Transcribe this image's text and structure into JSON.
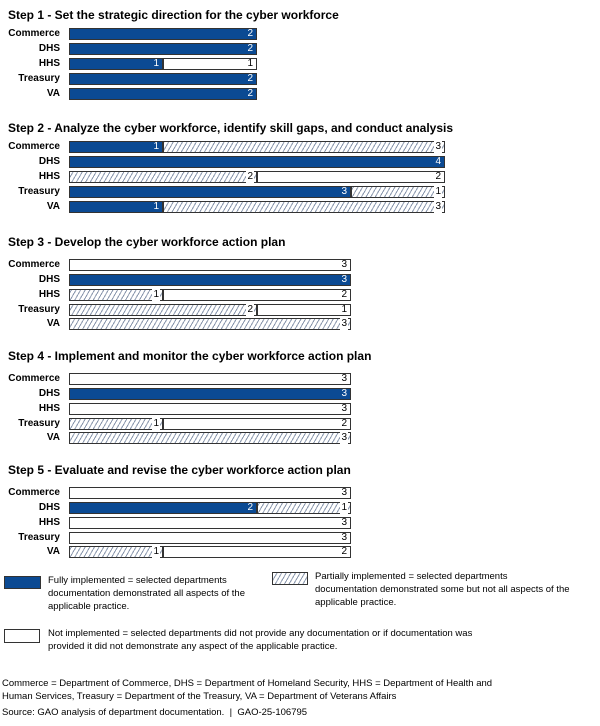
{
  "chart_data": {
    "type": "bar",
    "orientation": "horizontal",
    "stacked": true,
    "colors": {
      "full": "#0b4a93",
      "partial": "hatched",
      "not": "#ffffff"
    },
    "steps": [
      {
        "title": "Step 1 - Set the strategic direction for the cyber workforce",
        "rows": [
          {
            "dept": "Commerce",
            "full": 2,
            "partial": 0,
            "not": 0
          },
          {
            "dept": "DHS",
            "full": 2,
            "partial": 0,
            "not": 0
          },
          {
            "dept": "HHS",
            "full": 1,
            "partial": 0,
            "not": 1
          },
          {
            "dept": "Treasury",
            "full": 2,
            "partial": 0,
            "not": 0
          },
          {
            "dept": "VA",
            "full": 2,
            "partial": 0,
            "not": 0
          }
        ]
      },
      {
        "title": "Step 2 - Analyze the cyber workforce, identify skill gaps, and conduct analysis",
        "rows": [
          {
            "dept": "Commerce",
            "full": 1,
            "partial": 3,
            "not": 0
          },
          {
            "dept": "DHS",
            "full": 4,
            "partial": 0,
            "not": 0
          },
          {
            "dept": "HHS",
            "full": 0,
            "partial": 2,
            "not": 2
          },
          {
            "dept": "Treasury",
            "full": 3,
            "partial": 1,
            "not": 0
          },
          {
            "dept": "VA",
            "full": 1,
            "partial": 3,
            "not": 0
          }
        ]
      },
      {
        "title": "Step 3 - Develop the cyber workforce action plan",
        "rows": [
          {
            "dept": "Commerce",
            "full": 0,
            "partial": 0,
            "not": 3
          },
          {
            "dept": "DHS",
            "full": 3,
            "partial": 0,
            "not": 0
          },
          {
            "dept": "HHS",
            "full": 0,
            "partial": 1,
            "not": 2
          },
          {
            "dept": "Treasury",
            "full": 0,
            "partial": 2,
            "not": 1
          },
          {
            "dept": "VA",
            "full": 0,
            "partial": 3,
            "not": 0
          }
        ]
      },
      {
        "title": "Step 4 - Implement and monitor the cyber workforce action plan",
        "rows": [
          {
            "dept": "Commerce",
            "full": 0,
            "partial": 0,
            "not": 3
          },
          {
            "dept": "DHS",
            "full": 3,
            "partial": 0,
            "not": 0
          },
          {
            "dept": "HHS",
            "full": 0,
            "partial": 0,
            "not": 3
          },
          {
            "dept": "Treasury",
            "full": 0,
            "partial": 1,
            "not": 2
          },
          {
            "dept": "VA",
            "full": 0,
            "partial": 3,
            "not": 0
          }
        ]
      },
      {
        "title": "Step 5 - Evaluate and revise the cyber workforce action plan",
        "rows": [
          {
            "dept": "Commerce",
            "full": 0,
            "partial": 0,
            "not": 3
          },
          {
            "dept": "DHS",
            "full": 2,
            "partial": 1,
            "not": 0
          },
          {
            "dept": "HHS",
            "full": 0,
            "partial": 0,
            "not": 3
          },
          {
            "dept": "Treasury",
            "full": 0,
            "partial": 0,
            "not": 3
          },
          {
            "dept": "VA",
            "full": 0,
            "partial": 1,
            "not": 2
          }
        ]
      }
    ],
    "legend": {
      "full": "Fully implemented = selected departments documentation demonstrated all aspects of the applicable practice.",
      "partial": "Partially implemented = selected departments documentation demonstrated some but not all aspects of the applicable practice.",
      "not": "Not implemented = selected departments did not provide any documentation or if documentation was provided it did not demonstrate any aspect of the applicable practice."
    }
  },
  "footnote": "Commerce = Department of Commerce, DHS = Department of Homeland Security, HHS = Department of Health and Human Services, Treasury = Department of the Treasury, VA = Department of Veterans Affairs",
  "source": "Source: GAO analysis of department documentation.  |  GAO-25-106795"
}
